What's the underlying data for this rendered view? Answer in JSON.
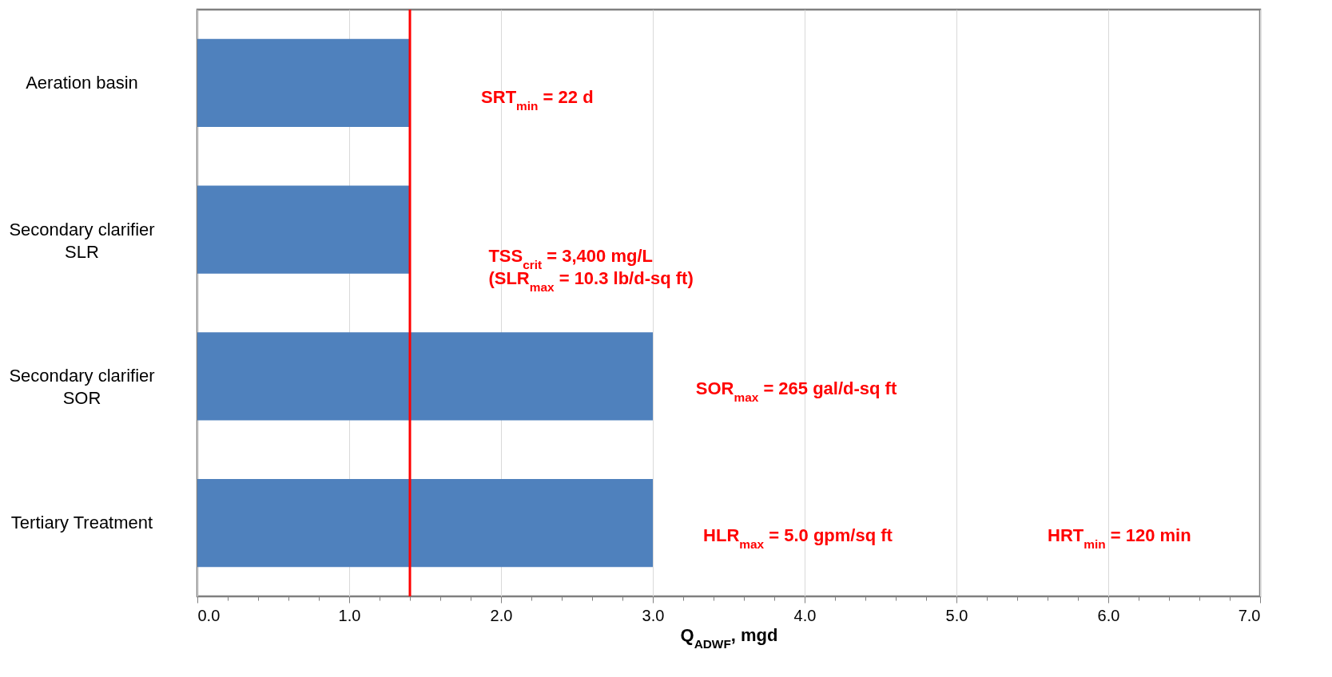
{
  "chart_data": {
    "type": "bar",
    "orientation": "horizontal",
    "categories": [
      "Aeration basin",
      "Secondary clarifier\nSLR",
      "Secondary clarifier\nSOR",
      "Tertiary Treatment"
    ],
    "values": [
      1.4,
      1.4,
      3.0,
      3.0
    ],
    "color": "#4f81bd",
    "xlabel": "Q$_{ADWF}$, mgd",
    "xlim": [
      0,
      7
    ],
    "xticks": [
      {
        "value": 0,
        "label": "0.0"
      },
      {
        "value": 0.2,
        "label": null
      },
      {
        "value": 0.4,
        "label": null
      },
      {
        "value": 0.6,
        "label": null
      },
      {
        "value": 0.8,
        "label": null
      },
      {
        "value": 1,
        "label": "1.0"
      },
      {
        "value": 1.2,
        "label": null
      },
      {
        "value": 1.4,
        "label": null
      },
      {
        "value": 1.6,
        "label": null
      },
      {
        "value": 1.8,
        "label": null
      },
      {
        "value": 2,
        "label": "2.0"
      },
      {
        "value": 2.2,
        "label": null
      },
      {
        "value": 2.4,
        "label": null
      },
      {
        "value": 2.6,
        "label": null
      },
      {
        "value": 2.8,
        "label": null
      },
      {
        "value": 3,
        "label": "3.0"
      },
      {
        "value": 3.2,
        "label": null
      },
      {
        "value": 3.4,
        "label": null
      },
      {
        "value": 3.6,
        "label": null
      },
      {
        "value": 3.8,
        "label": null
      },
      {
        "value": 4,
        "label": "4.0"
      },
      {
        "value": 4.2,
        "label": null
      },
      {
        "value": 4.4,
        "label": null
      },
      {
        "value": 4.6,
        "label": null
      },
      {
        "value": 4.8,
        "label": null
      },
      {
        "value": 5,
        "label": "5.0"
      },
      {
        "value": 5.2,
        "label": null
      },
      {
        "value": 5.4,
        "label": null
      },
      {
        "value": 5.6,
        "label": null
      },
      {
        "value": 5.8,
        "label": null
      },
      {
        "value": 6,
        "label": "6.0"
      },
      {
        "value": 6.2,
        "label": null
      },
      {
        "value": 6.4,
        "label": null
      },
      {
        "value": 6.6,
        "label": null
      },
      {
        "value": 6.8,
        "label": null
      },
      {
        "value": 7,
        "label": "7.0"
      }
    ],
    "grid": "x",
    "ref_lines": [
      {
        "axis": "x",
        "value": 1.4,
        "color": "#ff0000"
      }
    ],
    "annotations": [
      "SRT$_{min}$ = 22 d",
      "TSS$_{crit}$ = 3,400 mg/L\n(SLR$_{max}$ = 10.3 lb/d-sq ft)",
      "SOR$_{max}$ = 265 gal/d-sq ft",
      "HLR$_{max}$ = 5.0 gpm/sq ft",
      "HRT$_{min}$ = 120 min"
    ]
  }
}
